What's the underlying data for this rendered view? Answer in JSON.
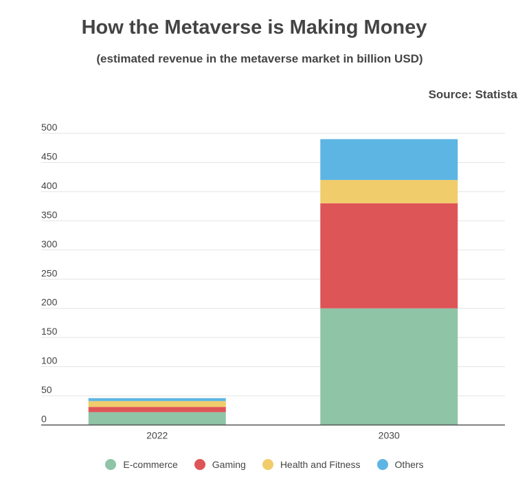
{
  "chart_data": {
    "type": "bar",
    "stacked": true,
    "title": "How the Metaverse is Making Money",
    "subtitle": "(estimated revenue in the metaverse market in billion USD)",
    "source": "Source: Statista",
    "categories": [
      "2022",
      "2030"
    ],
    "series": [
      {
        "name": "E-commerce",
        "color": "#8fc4a7",
        "values": [
          22,
          200
        ]
      },
      {
        "name": "Gaming",
        "color": "#de5557",
        "values": [
          9,
          180
        ]
      },
      {
        "name": "Health and Fitness",
        "color": "#f1cc6b",
        "values": [
          10,
          40
        ]
      },
      {
        "name": "Others",
        "color": "#5db5e4",
        "values": [
          5,
          70
        ]
      }
    ],
    "yticks": [
      0,
      50,
      100,
      150,
      200,
      250,
      300,
      350,
      400,
      450,
      500
    ],
    "ylim": [
      0,
      500
    ],
    "grid": true,
    "legend": "bottom-center",
    "xlabel": "",
    "ylabel": ""
  }
}
